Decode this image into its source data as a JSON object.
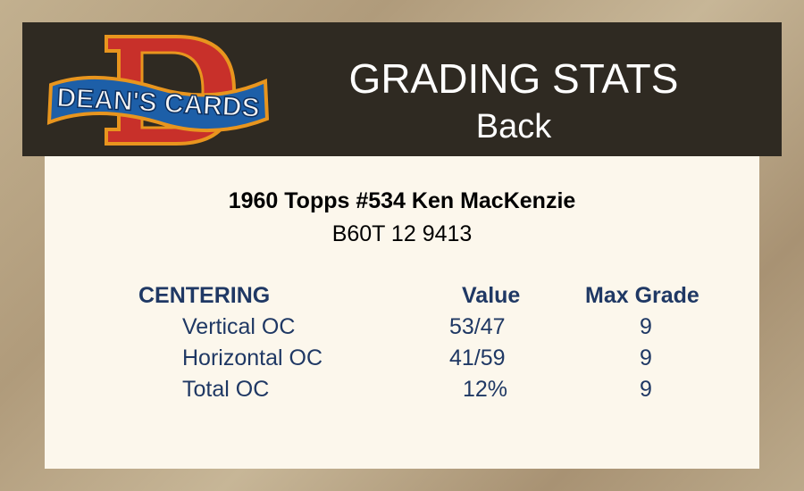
{
  "logo": {
    "text": "DEAN'S CARDS",
    "letter": "D"
  },
  "header": {
    "title": "GRADING STATS",
    "subtitle": "Back"
  },
  "card": {
    "name": "1960 Topps #534 Ken MacKenzie",
    "code": "B60T 12 9413"
  },
  "table": {
    "section": "CENTERING",
    "col_value": "Value",
    "col_max": "Max Grade",
    "rows": [
      {
        "label": "Vertical OC",
        "value": "53/47",
        "max": "9"
      },
      {
        "label": "Horizontal OC",
        "value": "41/59",
        "max": "9"
      },
      {
        "label": "Total OC",
        "value": "12%",
        "max": "9"
      }
    ]
  },
  "colors": {
    "header_bg": "#2f2a22",
    "panel_bg": "#fcf7ec",
    "text_blue": "#1f3864"
  }
}
